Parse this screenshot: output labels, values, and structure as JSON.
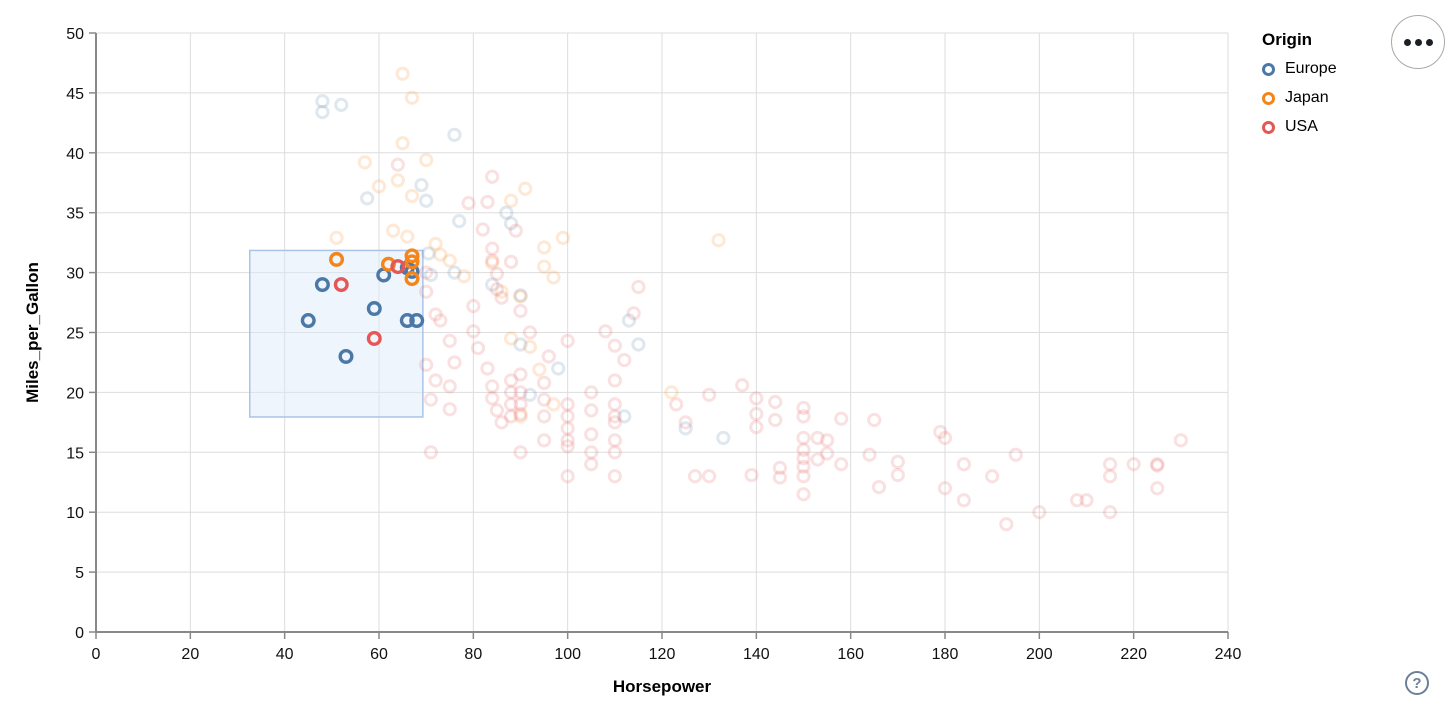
{
  "controls": {
    "menu_button_label": "options-menu",
    "help_label": "?"
  },
  "chart_data": {
    "type": "scatter",
    "xlabel": "Horsepower",
    "ylabel": "Miles_per_Gallon",
    "xlim": [
      0,
      240
    ],
    "ylim": [
      0,
      50
    ],
    "x_ticks": [
      0,
      20,
      40,
      60,
      80,
      100,
      120,
      140,
      160,
      180,
      200,
      220,
      240
    ],
    "y_ticks": [
      0,
      5,
      10,
      15,
      20,
      25,
      30,
      35,
      40,
      45,
      50
    ],
    "grid": true,
    "colors": {
      "grid": "#dddddd",
      "axis": "#888888",
      "tick_label": "#111111",
      "brush_fill": "#dce8f8",
      "brush_stroke": "#a9c4e9"
    },
    "unselected_opacity": 0.18,
    "legend": {
      "title": "Origin",
      "position": "top-right",
      "entries": [
        {
          "label": "Europe",
          "color": "#4c78a8"
        },
        {
          "label": "Japan",
          "color": "#f58518"
        },
        {
          "label": "USA",
          "color": "#e45756"
        }
      ]
    },
    "brush": {
      "x": [
        32.6,
        69.3
      ],
      "y": [
        17.95,
        31.85
      ]
    },
    "series": [
      {
        "name": "Europe",
        "color": "#4c78a8",
        "selected_points": [
          [
            45,
            26
          ],
          [
            48,
            29
          ],
          [
            53,
            23
          ],
          [
            59,
            27
          ],
          [
            61,
            29.8
          ],
          [
            66,
            30.4
          ],
          [
            67,
            30.1
          ],
          [
            66,
            26
          ],
          [
            68,
            26
          ]
        ],
        "points": [
          [
            48,
            44.3
          ],
          [
            48,
            43.4
          ],
          [
            52,
            44.0
          ],
          [
            76,
            41.5
          ],
          [
            69,
            37.3
          ],
          [
            70,
            36.0
          ],
          [
            57.5,
            36.2
          ],
          [
            77,
            34.3
          ],
          [
            87,
            35.0
          ],
          [
            88,
            34.1
          ],
          [
            70.5,
            31.6
          ],
          [
            76,
            30.0
          ],
          [
            84,
            29.0
          ],
          [
            71,
            29.8
          ],
          [
            90,
            28.1
          ],
          [
            113,
            26.0
          ],
          [
            90,
            24.0
          ],
          [
            98,
            22.0
          ],
          [
            115,
            24.0
          ],
          [
            112,
            18.0
          ],
          [
            92,
            19.8
          ],
          [
            125,
            17.0
          ],
          [
            133,
            16.2
          ]
        ]
      },
      {
        "name": "Japan",
        "color": "#f58518",
        "selected_points": [
          [
            51,
            31.1
          ],
          [
            62,
            30.7
          ],
          [
            67,
            31.4
          ],
          [
            67,
            30.9
          ],
          [
            67,
            29.5
          ]
        ],
        "points": [
          [
            51,
            32.9
          ],
          [
            57,
            39.2
          ],
          [
            60,
            37.2
          ],
          [
            63,
            33.5
          ],
          [
            64,
            37.7
          ],
          [
            65,
            46.6
          ],
          [
            65,
            40.8
          ],
          [
            66,
            33.0
          ],
          [
            67,
            44.6
          ],
          [
            67,
            36.4
          ],
          [
            70,
            39.4
          ],
          [
            72,
            32.4
          ],
          [
            73,
            31.5
          ],
          [
            75,
            31.0
          ],
          [
            78,
            29.7
          ],
          [
            84,
            30.8
          ],
          [
            86,
            28.4
          ],
          [
            88,
            36.0
          ],
          [
            88,
            24.5
          ],
          [
            90,
            28.0
          ],
          [
            90,
            18.0
          ],
          [
            91,
            37.0
          ],
          [
            92,
            23.8
          ],
          [
            94,
            21.9
          ],
          [
            95,
            32.1
          ],
          [
            95,
            30.5
          ],
          [
            97,
            29.6
          ],
          [
            97,
            19.0
          ],
          [
            99,
            32.9
          ],
          [
            122,
            20.0
          ],
          [
            132,
            32.7
          ]
        ]
      },
      {
        "name": "USA",
        "color": "#e45756",
        "selected_points": [
          [
            52,
            29
          ],
          [
            64,
            30.5
          ],
          [
            59,
            24.5
          ]
        ],
        "points": [
          [
            64,
            39
          ],
          [
            84,
            38
          ],
          [
            79,
            35.8
          ],
          [
            83,
            35.9
          ],
          [
            82,
            33.6
          ],
          [
            89,
            33.5
          ],
          [
            84,
            32
          ],
          [
            84,
            31
          ],
          [
            85,
            29.9
          ],
          [
            85,
            28.6
          ],
          [
            86,
            27.9
          ],
          [
            88,
            30.9
          ],
          [
            90,
            26.8
          ],
          [
            92,
            25
          ],
          [
            96,
            23
          ],
          [
            100,
            24.3
          ],
          [
            108,
            25.1
          ],
          [
            112,
            22.7
          ],
          [
            115,
            28.8
          ],
          [
            114,
            26.6
          ],
          [
            110,
            23.9
          ],
          [
            70,
            30
          ],
          [
            70,
            28.4
          ],
          [
            72,
            26.5
          ],
          [
            73,
            26
          ],
          [
            75,
            24.3
          ],
          [
            76,
            22.5
          ],
          [
            70,
            22.3
          ],
          [
            72,
            21
          ],
          [
            75,
            20.5
          ],
          [
            71,
            19.4
          ],
          [
            75,
            18.6
          ],
          [
            71,
            15
          ],
          [
            80,
            27.2
          ],
          [
            80,
            25.1
          ],
          [
            81,
            23.7
          ],
          [
            83,
            22
          ],
          [
            84,
            20.5
          ],
          [
            84,
            19.5
          ],
          [
            85,
            18.5
          ],
          [
            86,
            17.5
          ],
          [
            88,
            21
          ],
          [
            88,
            20
          ],
          [
            88,
            19
          ],
          [
            88,
            18
          ],
          [
            90,
            21.5
          ],
          [
            90,
            20
          ],
          [
            90,
            19
          ],
          [
            90,
            18.2
          ],
          [
            90,
            15
          ],
          [
            95,
            20.8
          ],
          [
            95,
            19.4
          ],
          [
            95,
            18
          ],
          [
            95,
            16
          ],
          [
            100,
            19
          ],
          [
            100,
            18
          ],
          [
            100,
            17
          ],
          [
            100,
            16
          ],
          [
            100,
            15.5
          ],
          [
            100,
            13
          ],
          [
            105,
            20
          ],
          [
            105,
            18.5
          ],
          [
            105,
            16.5
          ],
          [
            105,
            15
          ],
          [
            105,
            14
          ],
          [
            110,
            21
          ],
          [
            110,
            19
          ],
          [
            110,
            18
          ],
          [
            110,
            17.5
          ],
          [
            110,
            16
          ],
          [
            110,
            15
          ],
          [
            110,
            13
          ],
          [
            123,
            19
          ],
          [
            125,
            17.5
          ],
          [
            127,
            13
          ],
          [
            130,
            13
          ],
          [
            130,
            19.8
          ],
          [
            137,
            20.6
          ],
          [
            140,
            19.5
          ],
          [
            140,
            18.2
          ],
          [
            140,
            17.1
          ],
          [
            139,
            13.1
          ],
          [
            144,
            19.2
          ],
          [
            144,
            17.7
          ],
          [
            145,
            13.7
          ],
          [
            145,
            12.9
          ],
          [
            150,
            18.7
          ],
          [
            150,
            18
          ],
          [
            150,
            16.2
          ],
          [
            150,
            15.2
          ],
          [
            150,
            14.5
          ],
          [
            150,
            13.8
          ],
          [
            150,
            13
          ],
          [
            150,
            11.5
          ],
          [
            153,
            16.2
          ],
          [
            153,
            14.4
          ],
          [
            155,
            16
          ],
          [
            155,
            14.9
          ],
          [
            158,
            17.8
          ],
          [
            158,
            14
          ],
          [
            164,
            14.8
          ],
          [
            165,
            17.7
          ],
          [
            166,
            12.1
          ],
          [
            170,
            14.2
          ],
          [
            170,
            13.1
          ],
          [
            179,
            16.7
          ],
          [
            180,
            16.2
          ],
          [
            180,
            12
          ],
          [
            184,
            14
          ],
          [
            184,
            11
          ],
          [
            190,
            13
          ],
          [
            193,
            9
          ],
          [
            195,
            14.8
          ],
          [
            200,
            10
          ],
          [
            208,
            11
          ],
          [
            210,
            11
          ],
          [
            215,
            14
          ],
          [
            215,
            13
          ],
          [
            215,
            10
          ],
          [
            220,
            14
          ],
          [
            225,
            14
          ],
          [
            225,
            13.9
          ],
          [
            225,
            12
          ],
          [
            230,
            16
          ]
        ]
      }
    ]
  }
}
